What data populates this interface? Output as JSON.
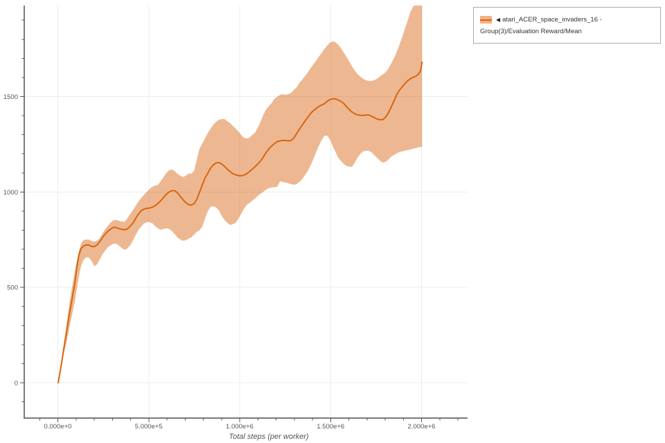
{
  "legend": {
    "collapse_icon": "◀",
    "series_label": "atari_ACER_space_invaders_16 - Group(3)/Evaluation Reward/Mean"
  },
  "chart_data": {
    "type": "line",
    "title": "",
    "xlabel": "Total steps (per worker)",
    "ylabel": "",
    "legend_position": "top-right-outside",
    "grid": true,
    "x_tick_labels": [
      "0.000e+0",
      "5.000e+5",
      "1.000e+6",
      "1.500e+6",
      "2.000e+6"
    ],
    "x_tick_values": [
      0,
      500000,
      1000000,
      1500000,
      2000000
    ],
    "x_minor_step": 100000,
    "x_minor_range": [
      -100000,
      2200000
    ],
    "y_tick_labels": [
      "0",
      "500",
      "1000",
      "1500"
    ],
    "y_tick_values": [
      0,
      500,
      1000,
      1500
    ],
    "y_minor_step": 100,
    "y_minor_range": [
      -100,
      1900
    ],
    "xlim": [
      -184762,
      2253333
    ],
    "ylim": [
      -185,
      1977
    ],
    "colors": {
      "line": "#d8650f",
      "band": "rgba(215,98,10,0.45)",
      "axis": "#7a7a7a",
      "tick": "#555555",
      "grid": "#ececec",
      "label": "#555555"
    },
    "series": [
      {
        "name": "atari_ACER_space_invaders_16 - Group(3)/Evaluation Reward/Mean",
        "steps": [
          2000,
          17000,
          32000,
          48000,
          63000,
          78000,
          93000,
          105000,
          116000,
          128000,
          139000,
          154000,
          170000,
          185000,
          200000,
          215000,
          231000,
          246000,
          261000,
          276000,
          292000,
          307000,
          322000,
          337000,
          353000,
          368000,
          383000,
          398000,
          414000,
          429000,
          444000,
          459000,
          475000,
          490000,
          505000,
          520000,
          536000,
          551000,
          566000,
          581000,
          596000,
          612000,
          627000,
          642000,
          657000,
          673000,
          688000,
          703000,
          718000,
          734000,
          749000,
          764000,
          779000,
          795000,
          810000,
          825000,
          840000,
          856000,
          871000,
          886000,
          901000,
          917000,
          932000,
          947000,
          962000,
          978000,
          993000,
          1008000,
          1023000,
          1039000,
          1054000,
          1069000,
          1084000,
          1100000,
          1115000,
          1130000,
          1145000,
          1161000,
          1176000,
          1191000,
          1206000,
          1222000,
          1237000,
          1252000,
          1267000,
          1283000,
          1298000,
          1313000,
          1328000,
          1344000,
          1359000,
          1374000,
          1389000,
          1405000,
          1420000,
          1435000,
          1450000,
          1465000,
          1481000,
          1496000,
          1511000,
          1526000,
          1542000,
          1557000,
          1572000,
          1587000,
          1603000,
          1618000,
          1633000,
          1648000,
          1664000,
          1679000,
          1694000,
          1709000,
          1725000,
          1740000,
          1755000,
          1770000,
          1786000,
          1801000,
          1816000,
          1831000,
          1847000,
          1862000,
          1877000,
          1892000,
          1908000,
          1923000,
          1938000,
          1953000,
          1969000,
          1984000,
          1995000,
          2003000
        ],
        "mean": [
          0,
          83,
          174,
          265,
          356,
          439,
          519,
          610,
          671,
          704,
          715,
          722,
          722,
          715,
          713,
          722,
          740,
          762,
          780,
          795,
          807,
          815,
          813,
          807,
          804,
          802,
          807,
          820,
          838,
          863,
          885,
          902,
          911,
          914,
          916,
          920,
          929,
          940,
          954,
          970,
          987,
          1000,
          1007,
          1007,
          996,
          978,
          960,
          945,
          934,
          931,
          938,
          961,
          998,
          1038,
          1074,
          1099,
          1125,
          1143,
          1152,
          1154,
          1147,
          1134,
          1119,
          1107,
          1096,
          1090,
          1086,
          1085,
          1088,
          1096,
          1107,
          1119,
          1132,
          1147,
          1163,
          1183,
          1206,
          1226,
          1241,
          1253,
          1264,
          1268,
          1270,
          1270,
          1268,
          1270,
          1283,
          1306,
          1328,
          1350,
          1371,
          1391,
          1410,
          1426,
          1437,
          1448,
          1455,
          1462,
          1475,
          1484,
          1488,
          1488,
          1482,
          1475,
          1464,
          1448,
          1431,
          1419,
          1410,
          1404,
          1402,
          1401,
          1403,
          1404,
          1397,
          1390,
          1382,
          1379,
          1379,
          1390,
          1411,
          1440,
          1473,
          1506,
          1531,
          1549,
          1567,
          1582,
          1593,
          1600,
          1607,
          1618,
          1636,
          1680
        ],
        "upper": [
          0,
          102,
          200,
          308,
          410,
          501,
          581,
          642,
          693,
          729,
          747,
          751,
          751,
          744,
          740,
          744,
          758,
          784,
          806,
          824,
          842,
          853,
          853,
          849,
          845,
          845,
          863,
          885,
          907,
          929,
          951,
          969,
          987,
          1001,
          1016,
          1027,
          1034,
          1038,
          1056,
          1078,
          1099,
          1114,
          1118,
          1110,
          1096,
          1085,
          1078,
          1085,
          1096,
          1096,
          1110,
          1172,
          1226,
          1255,
          1281,
          1310,
          1332,
          1353,
          1368,
          1379,
          1382,
          1382,
          1371,
          1361,
          1346,
          1332,
          1317,
          1299,
          1284,
          1281,
          1284,
          1299,
          1310,
          1339,
          1368,
          1404,
          1433,
          1451,
          1466,
          1488,
          1499,
          1509,
          1513,
          1509,
          1513,
          1520,
          1535,
          1549,
          1571,
          1589,
          1607,
          1626,
          1647,
          1669,
          1687,
          1709,
          1727,
          1749,
          1767,
          1782,
          1789,
          1785,
          1771,
          1753,
          1731,
          1709,
          1683,
          1658,
          1636,
          1618,
          1604,
          1593,
          1586,
          1582,
          1582,
          1586,
          1593,
          1604,
          1615,
          1626,
          1644,
          1669,
          1698,
          1731,
          1767,
          1807,
          1854,
          1897,
          1941,
          1970,
          1988,
          1995,
          1995,
          1995
        ],
        "lower": [
          0,
          69,
          149,
          214,
          287,
          356,
          425,
          497,
          559,
          613,
          639,
          657,
          657,
          639,
          610,
          620,
          646,
          675,
          693,
          711,
          722,
          729,
          729,
          718,
          704,
          697,
          704,
          722,
          747,
          776,
          802,
          820,
          835,
          842,
          842,
          835,
          820,
          809,
          802,
          806,
          809,
          806,
          795,
          780,
          762,
          751,
          744,
          747,
          755,
          762,
          776,
          791,
          798,
          820,
          863,
          900,
          922,
          925,
          918,
          903,
          874,
          853,
          838,
          827,
          831,
          838,
          860,
          885,
          911,
          932,
          943,
          954,
          965,
          980,
          991,
          1001,
          1012,
          1020,
          1023,
          1025,
          1027,
          1056,
          1052,
          1049,
          1045,
          1041,
          1038,
          1041,
          1052,
          1067,
          1088,
          1110,
          1136,
          1172,
          1208,
          1241,
          1270,
          1295,
          1295,
          1277,
          1241,
          1212,
          1179,
          1161,
          1147,
          1136,
          1132,
          1132,
          1154,
          1179,
          1201,
          1212,
          1216,
          1216,
          1208,
          1194,
          1179,
          1165,
          1154,
          1157,
          1168,
          1183,
          1194,
          1201,
          1208,
          1212,
          1216,
          1219,
          1223,
          1226,
          1230,
          1234,
          1235,
          1237
        ]
      }
    ]
  }
}
